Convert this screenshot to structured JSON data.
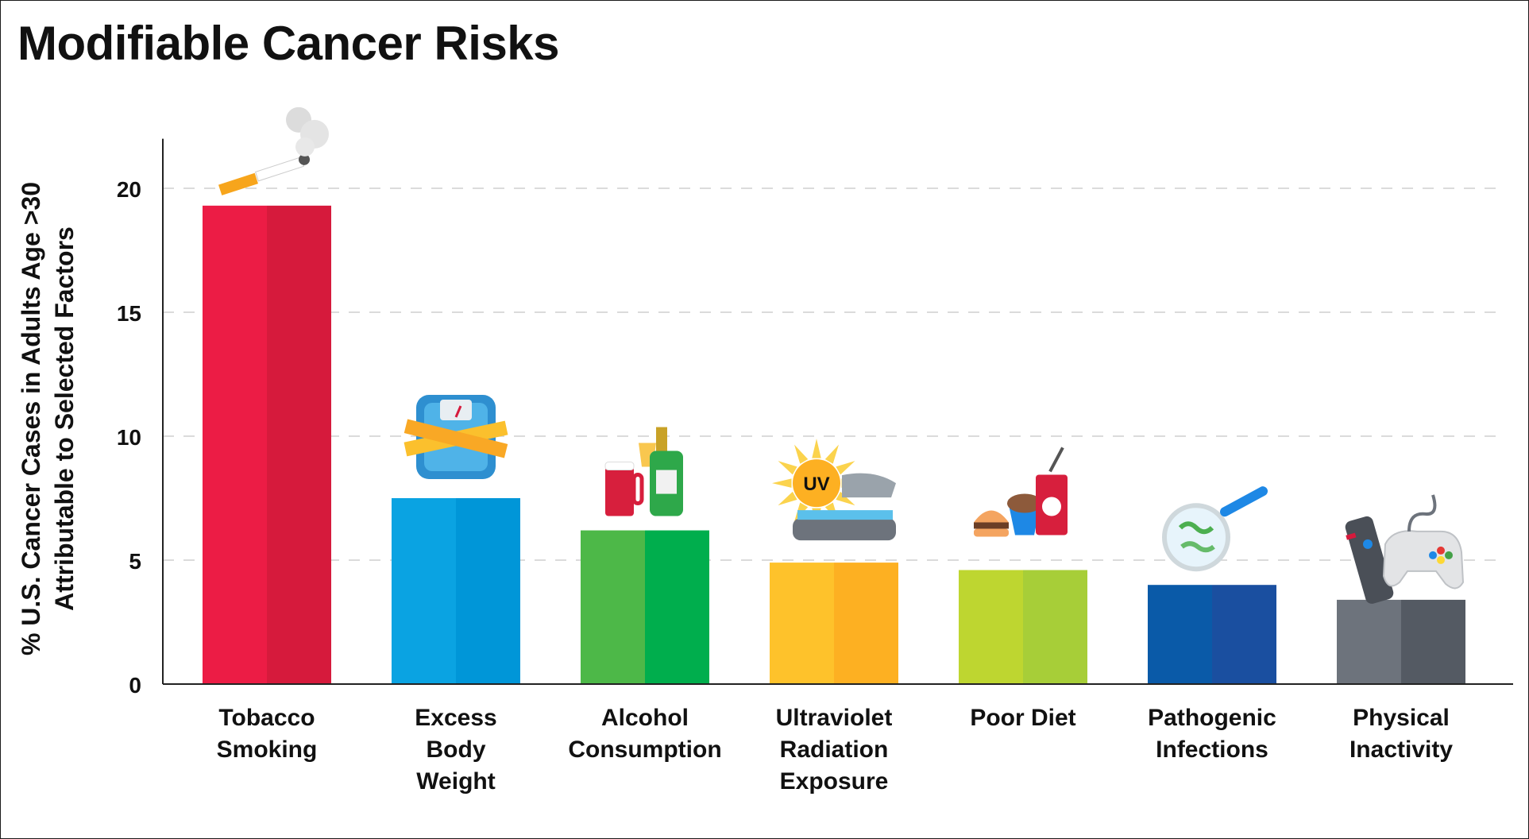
{
  "chart_data": {
    "type": "bar",
    "title": "Modifiable Cancer Risks",
    "xlabel": "",
    "ylabel_lines": [
      "% U.S. Cancer Cases in Adults Age >30",
      "Attributable to Selected Factors"
    ],
    "ylim": [
      0,
      22
    ],
    "yticks": [
      0,
      5,
      10,
      15,
      20
    ],
    "grid": true,
    "categories": [
      {
        "lines": [
          "Tobacco",
          "Smoking"
        ],
        "value": 19.3,
        "colors": [
          "#EC1C45",
          "#D61A3C"
        ],
        "icon": "cigarette-icon"
      },
      {
        "lines": [
          "Excess",
          "Body",
          "Weight"
        ],
        "value": 7.5,
        "colors": [
          "#0AA3E2",
          "#0096D8"
        ],
        "icon": "scale-icon"
      },
      {
        "lines": [
          "Alcohol",
          "Consumption"
        ],
        "value": 6.2,
        "colors": [
          "#4DB848",
          "#00AE4D"
        ],
        "icon": "drinks-icon"
      },
      {
        "lines": [
          "Ultraviolet",
          "Radiation",
          "Exposure"
        ],
        "value": 4.9,
        "colors": [
          "#FEC22B",
          "#FDB022"
        ],
        "icon": "tanning-bed-icon",
        "icon_text": "UV"
      },
      {
        "lines": [
          "Poor Diet"
        ],
        "value": 4.6,
        "colors": [
          "#BED630",
          "#A7CE38"
        ],
        "icon": "fast-food-icon"
      },
      {
        "lines": [
          "Pathogenic",
          "Infections"
        ],
        "value": 4.0,
        "colors": [
          "#0A5AA8",
          "#1A4FA0"
        ],
        "icon": "bacteria-icon"
      },
      {
        "lines": [
          "Physical",
          "Inactivity"
        ],
        "value": 3.4,
        "colors": [
          "#6D737C",
          "#545A63"
        ],
        "icon": "remote-gamepad-icon"
      }
    ]
  }
}
